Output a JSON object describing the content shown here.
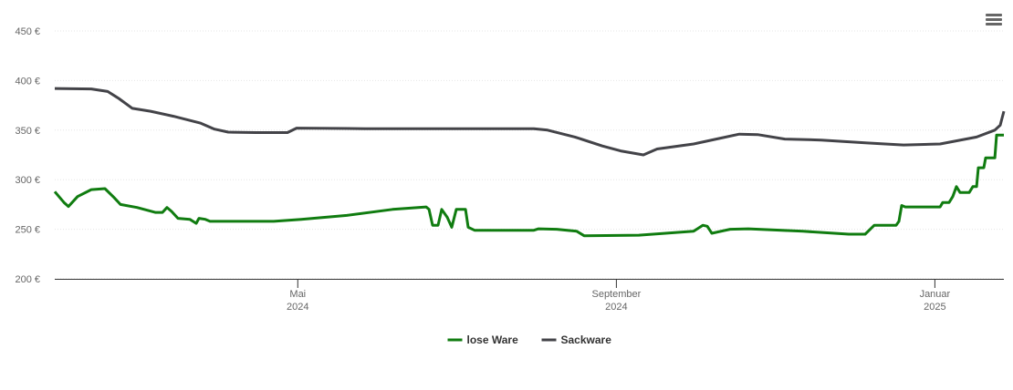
{
  "chart_data": {
    "type": "line",
    "xlim": [
      2024.079,
      2025.0722
    ],
    "xticks": [
      {
        "value": 2024.3333,
        "label": [
          "Mai",
          "2024"
        ]
      },
      {
        "value": 2024.6667,
        "label": [
          "September",
          "2024"
        ]
      },
      {
        "value": 2025,
        "label": [
          "Januar",
          "2025"
        ]
      }
    ],
    "ylim": [
      200,
      450
    ],
    "yticks": [
      {
        "value": 200,
        "label": "200 €"
      },
      {
        "value": 250,
        "label": "250 €"
      },
      {
        "value": 300,
        "label": "300 €"
      },
      {
        "value": 350,
        "label": "350 €"
      },
      {
        "value": 400,
        "label": "400 €"
      },
      {
        "value": 450,
        "label": "450 €"
      }
    ],
    "grid": true,
    "legend": "bottom",
    "series": [
      {
        "name": "lose Ware",
        "color": "#107c10",
        "x": [
          2024.079,
          2024.0886,
          2024.0933,
          2024.1029,
          2024.1172,
          2024.1315,
          2024.1411,
          2024.1478,
          2024.165,
          2024.1841,
          2024.1917,
          2024.1965,
          2024.2012,
          2024.2079,
          2024.2203,
          2024.227,
          2024.2299,
          2024.2366,
          2024.2414,
          2024.3082,
          2024.3369,
          2024.3846,
          2024.4324,
          2024.4677,
          2024.4706,
          2024.4744,
          2024.4801,
          2024.4839,
          2024.4897,
          2024.4944,
          2024.4992,
          2024.5088,
          2024.5116,
          2024.5183,
          2024.5804,
          2024.5852,
          2024.6043,
          2024.6253,
          2024.6329,
          2024.6902,
          2024.7475,
          2024.7571,
          2024.7618,
          2024.7666,
          2024.7857,
          2024.8048,
          2024.8621,
          2024.9099,
          2024.927,
          2024.9366,
          2024.9528,
          2024.9595,
          2024.9624,
          2024.9652,
          2024.9691,
          2025.0054,
          2025.0082,
          2025.0149,
          2025.0187,
          2025.0225,
          2025.0264,
          2025.0359,
          2025.0397,
          2025.0436,
          2025.0455,
          2025.0512,
          2025.0531,
          2025.0627,
          2025.0646,
          2025.0722
        ],
        "values": [
          288,
          277,
          273,
          283,
          290,
          291,
          282,
          275,
          272,
          267,
          267,
          272,
          268,
          261,
          260,
          256,
          261,
          260,
          258,
          258,
          260,
          264,
          270,
          272.5,
          270,
          254,
          254,
          270,
          262,
          252,
          270,
          270,
          252,
          249,
          249,
          250.5,
          250,
          248,
          243.5,
          244,
          248,
          254,
          253,
          246,
          250,
          250.5,
          248,
          245,
          245,
          254,
          254,
          254,
          258,
          274,
          272.5,
          272.5,
          277,
          277,
          283,
          293,
          287,
          287,
          293,
          293,
          312,
          312,
          322,
          322,
          345,
          345
        ]
      },
      {
        "name": "Sackware",
        "color": "#434348",
        "x": [
          2024.079,
          2024.1172,
          2024.1344,
          2024.1459,
          2024.1602,
          2024.1793,
          2024.2032,
          2024.2318,
          2024.2461,
          2024.2605,
          2024.2891,
          2024.3225,
          2024.3321,
          2024.4037,
          2024.4992,
          2024.5804,
          2024.5947,
          2024.6234,
          2024.652,
          2024.6711,
          2024.695,
          2024.7093,
          2024.7475,
          2024.7762,
          2024.7953,
          2024.8144,
          2024.843,
          2024.8812,
          2024.929,
          2024.9672,
          2025.0054,
          2025.0436,
          2025.0627,
          2025.0684,
          2025.0722
        ],
        "values": [
          392,
          391.5,
          389,
          382,
          372,
          369,
          364,
          357,
          351,
          348,
          347.5,
          347.5,
          352,
          351.5,
          351.5,
          351.5,
          350,
          343,
          334,
          329,
          325,
          331,
          336,
          342,
          346,
          345.5,
          341,
          340,
          337,
          335,
          336,
          343,
          350,
          355,
          369
        ]
      }
    ]
  }
}
